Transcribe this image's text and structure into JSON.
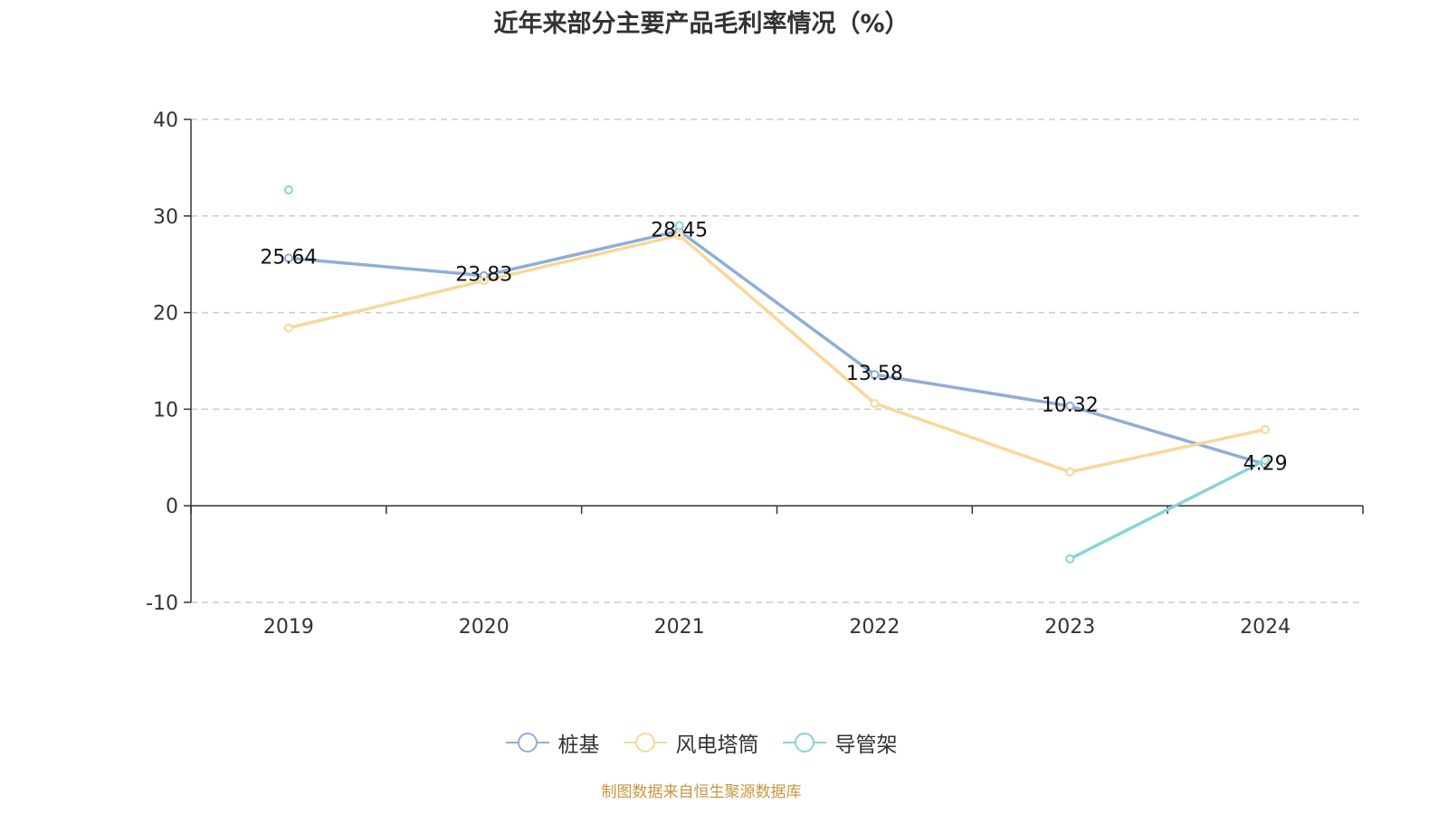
{
  "chart_data": {
    "type": "line",
    "title": "近年来部分主要产品毛利率情况（%）",
    "categories": [
      "2019",
      "2020",
      "2021",
      "2022",
      "2023",
      "2024"
    ],
    "ylim": [
      -10,
      40
    ],
    "yticks": [
      -10,
      0,
      10,
      20,
      30,
      40
    ],
    "grid": true,
    "legend_position": "bottom",
    "series": [
      {
        "name": "桩基",
        "color": "#8eaed8",
        "values": [
          25.64,
          23.83,
          28.45,
          13.58,
          10.32,
          4.29
        ],
        "labels": [
          "25.64",
          "23.83",
          "28.45",
          "13.58",
          "10.32",
          "4.29"
        ]
      },
      {
        "name": "风电塔筒",
        "color": "#f8d898",
        "values": [
          18.4,
          23.3,
          28.0,
          10.6,
          3.5,
          7.9
        ]
      },
      {
        "name": "导管架",
        "color": "#88d4d8",
        "values": [
          32.7,
          null,
          29.0,
          null,
          -5.5,
          4.7
        ]
      }
    ]
  },
  "source_note": "制图数据来自恒生聚源数据库"
}
